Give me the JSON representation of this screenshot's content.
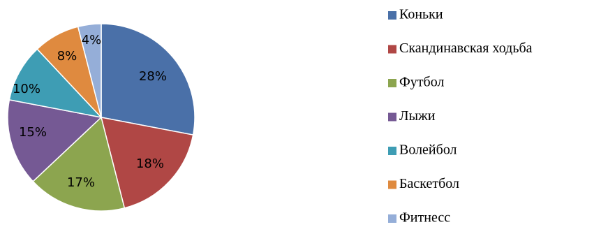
{
  "chart_data": {
    "type": "pie",
    "categories": [
      "Коньки",
      "Скандинавская ходьба",
      "Футбол",
      "Лыжи",
      "Волейбол",
      "Баскетбол",
      "Фитнесс"
    ],
    "values": [
      28,
      18,
      17,
      15,
      10,
      8,
      4
    ],
    "data_labels": [
      "28%",
      "18%",
      "17%",
      "15%",
      "10%",
      "8%",
      "4%"
    ],
    "colors": [
      "#4a70a8",
      "#b04745",
      "#8ca54f",
      "#755994",
      "#3e9db4",
      "#df8a3f",
      "#95aed8"
    ],
    "title": "",
    "legend_position": "right"
  }
}
